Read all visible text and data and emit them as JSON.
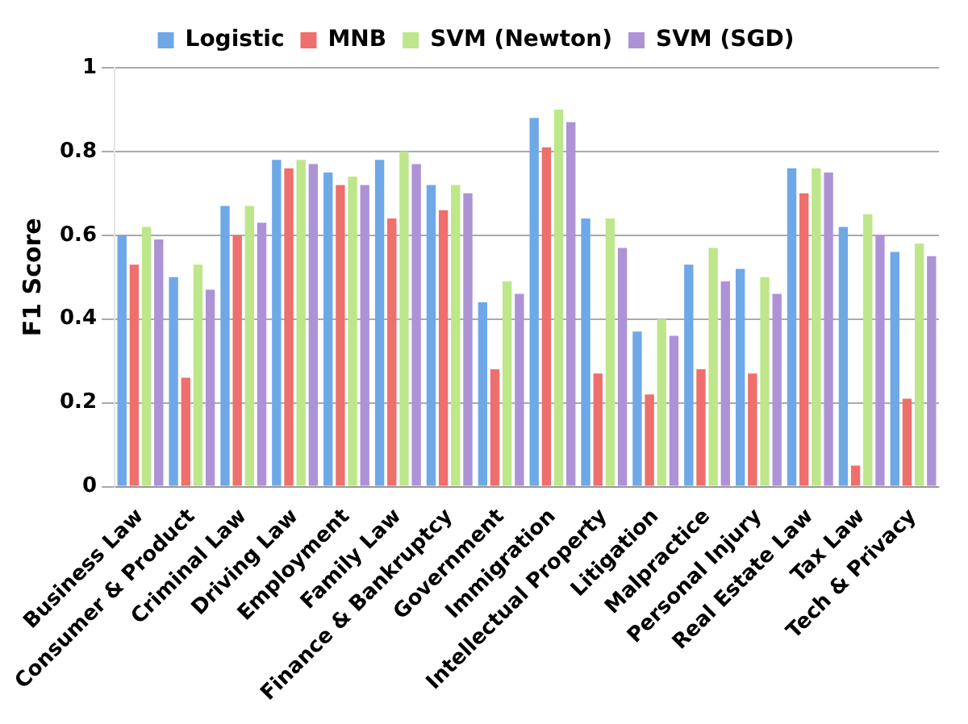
{
  "chart_data": {
    "type": "bar",
    "ylabel": "F1 Score",
    "categories": [
      "Business Law",
      "Consumer & Product",
      "Criminal Law",
      "Driving Law",
      "Employment",
      "Family Law",
      "Finance & Bankruptcy",
      "Government",
      "Immigration",
      "Intellectual Property",
      "Litigation",
      "Malpractice",
      "Personal Injury",
      "Real Estate Law",
      "Tax Law",
      "Tech & Privacy"
    ],
    "series": [
      {
        "name": "Logistic",
        "color": "#6fa8e6",
        "values": [
          0.6,
          0.5,
          0.67,
          0.78,
          0.75,
          0.78,
          0.72,
          0.44,
          0.88,
          0.64,
          0.37,
          0.53,
          0.52,
          0.76,
          0.62,
          0.56
        ]
      },
      {
        "name": "MNB",
        "color": "#ee6f6c",
        "values": [
          0.53,
          0.26,
          0.6,
          0.76,
          0.72,
          0.64,
          0.66,
          0.28,
          0.81,
          0.27,
          0.22,
          0.28,
          0.27,
          0.7,
          0.05,
          0.21
        ]
      },
      {
        "name": "SVM (Newton)",
        "color": "#bde78a",
        "values": [
          0.62,
          0.53,
          0.67,
          0.78,
          0.74,
          0.8,
          0.72,
          0.49,
          0.9,
          0.64,
          0.4,
          0.57,
          0.5,
          0.76,
          0.65,
          0.58
        ]
      },
      {
        "name": "SVM (SGD)",
        "color": "#ad93d6",
        "values": [
          0.59,
          0.47,
          0.63,
          0.77,
          0.72,
          0.77,
          0.7,
          0.46,
          0.87,
          0.57,
          0.36,
          0.49,
          0.46,
          0.75,
          0.6,
          0.55
        ]
      }
    ],
    "ylim": [
      0,
      1
    ],
    "yticks": [
      0,
      {
        "value": 0.2,
        "label": "0.2"
      },
      {
        "value": 0.4,
        "label": "0.4"
      },
      {
        "value": 0.6,
        "label": "0.6"
      },
      {
        "value": 0.8,
        "label": "0.8"
      },
      1
    ],
    "grid": "y",
    "legend": "top"
  }
}
